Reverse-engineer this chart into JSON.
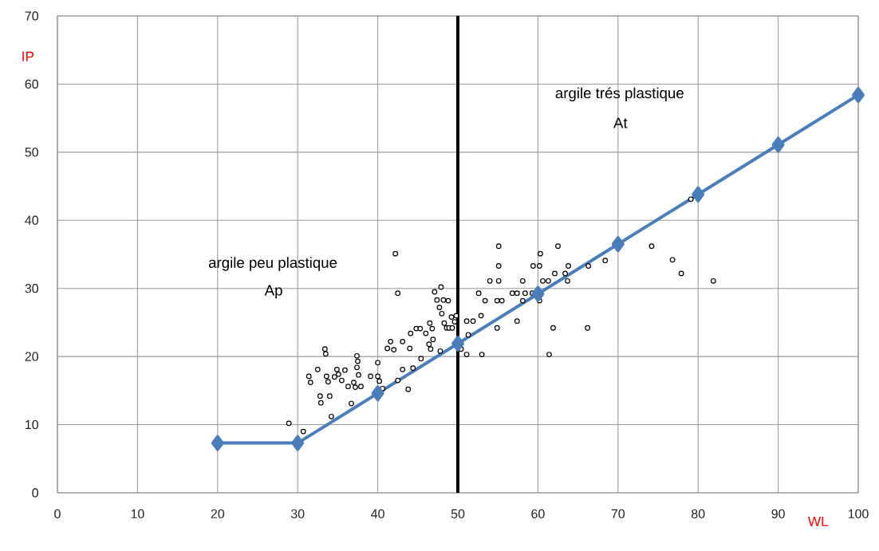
{
  "chart_data": {
    "type": "scatter",
    "xlabel": "WL",
    "ylabel": "IP",
    "xlim": [
      0,
      100
    ],
    "ylim": [
      0,
      70
    ],
    "xticks": [
      0,
      10,
      20,
      30,
      40,
      50,
      60,
      70,
      80,
      90,
      100
    ],
    "yticks": [
      0,
      10,
      20,
      30,
      40,
      50,
      60,
      70
    ],
    "grid": true,
    "annotations": [
      "argile peu plastique",
      "Ap",
      "argile trés plastique",
      "At"
    ],
    "ref_lines": [
      {
        "axis": "x",
        "value": 50,
        "color": "#000000"
      }
    ],
    "series": [
      {
        "color": "#000000",
        "marker": "circle",
        "x": [
          28.9,
          30.7,
          31.4,
          31.6,
          32.5,
          32.8,
          32.9,
          33.4,
          33.5,
          33.6,
          33.8,
          34.0,
          34.2,
          34.6,
          34.9,
          35.1,
          35.5,
          35.9,
          36.3,
          36.7,
          37.0,
          37.2,
          37.4,
          37.4,
          37.5,
          37.6,
          37.9,
          39.1,
          40.0,
          40.0,
          40.2,
          40.6,
          41.2,
          41.6,
          42.0,
          42.2,
          42.5,
          42.5,
          43.1,
          43.1,
          43.8,
          44.0,
          44.1,
          44.4,
          44.8,
          45.3,
          45.4,
          46.0,
          46.4,
          46.5,
          46.6,
          46.8,
          46.9,
          47.1,
          47.4,
          47.7,
          47.8,
          47.9,
          48.0,
          48.2,
          48.3,
          48.6,
          48.8,
          48.9,
          49.2,
          49.3,
          49.6,
          49.8,
          55.1,
          62.5,
          60.3,
          55.1,
          59.4,
          60.2,
          63.8,
          66.3,
          68.4,
          74.2,
          76.8,
          77.9,
          81.9,
          62.1,
          63.4,
          63.7,
          54.0,
          55.1,
          58.1,
          60.6,
          61.3,
          52.6,
          56.8,
          57.4,
          58.4,
          59.3,
          53.4,
          54.9,
          55.5,
          58.1,
          60.2,
          52.9,
          51.1,
          51.9,
          57.4,
          54.9,
          61.9,
          66.2,
          51.3,
          50.4,
          51.1,
          53.0,
          61.4,
          79.1
        ],
        "values": [
          10.2,
          9.0,
          17.1,
          16.2,
          18.1,
          14.2,
          13.2,
          21.1,
          20.4,
          17.1,
          16.3,
          14.2,
          11.2,
          17.0,
          18.1,
          17.4,
          16.5,
          18.0,
          15.6,
          13.1,
          16.2,
          15.5,
          18.4,
          20.1,
          19.3,
          17.3,
          15.6,
          17.1,
          17.1,
          19.1,
          16.4,
          15.3,
          21.2,
          22.2,
          21.0,
          35.1,
          29.3,
          16.5,
          22.2,
          18.1,
          15.2,
          21.2,
          23.4,
          18.3,
          24.1,
          24.1,
          19.7,
          23.4,
          21.8,
          24.9,
          21.1,
          24.1,
          22.5,
          29.5,
          28.3,
          27.2,
          20.8,
          30.2,
          26.3,
          28.3,
          24.9,
          24.2,
          28.2,
          24.2,
          25.8,
          24.2,
          25.1,
          26.0,
          36.2,
          36.2,
          35.1,
          33.3,
          33.3,
          33.3,
          33.3,
          33.3,
          34.1,
          36.2,
          34.2,
          32.2,
          31.1,
          32.2,
          32.2,
          31.1,
          31.1,
          31.1,
          31.1,
          31.1,
          31.1,
          29.3,
          29.3,
          29.3,
          29.3,
          29.3,
          28.2,
          28.2,
          28.2,
          28.2,
          28.2,
          26.0,
          25.2,
          25.2,
          25.2,
          24.2,
          24.2,
          24.2,
          23.2,
          21.1,
          20.3,
          20.3,
          20.3,
          43.1
        ]
      },
      {
        "type": "line",
        "color": "#4a7ebb",
        "marker": "diamond",
        "line_style": "solid",
        "x": [
          20,
          30,
          40,
          50,
          60,
          70,
          80,
          90,
          100
        ],
        "values": [
          7.3,
          7.3,
          14.6,
          21.9,
          29.2,
          36.5,
          43.8,
          51.1,
          58.4
        ]
      }
    ]
  }
}
